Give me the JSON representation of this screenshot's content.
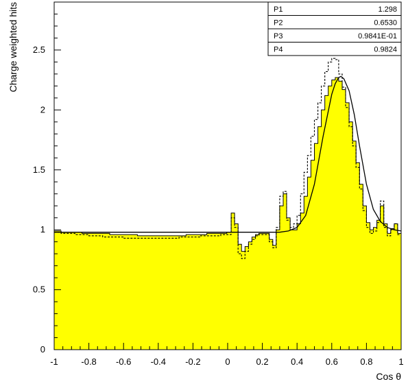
{
  "chart_data": {
    "type": "line",
    "title": "",
    "xlabel": "Cos θ",
    "ylabel": "Charge weighted hits",
    "xlim": [
      -1,
      1
    ],
    "ylim": [
      0,
      2.9
    ],
    "xticks": [
      "-1",
      "-0.8",
      "-0.6",
      "-0.4",
      "-0.2",
      "0",
      "0.2",
      "0.4",
      "0.6",
      "0.8",
      "1"
    ],
    "yticks": [
      "0",
      "0.5",
      "1",
      "1.5",
      "2",
      "2.5"
    ],
    "series": [
      {
        "kind": "histogram_filled",
        "color": "#ffff00",
        "x": [
          -0.98,
          -0.94,
          -0.9,
          -0.86,
          -0.82,
          -0.78,
          -0.74,
          -0.7,
          -0.66,
          -0.62,
          -0.58,
          -0.54,
          -0.5,
          -0.46,
          -0.42,
          -0.38,
          -0.34,
          -0.3,
          -0.26,
          -0.22,
          -0.18,
          -0.14,
          -0.1,
          -0.06,
          -0.02,
          0.01,
          0.03,
          0.05,
          0.07,
          0.09,
          0.11,
          0.13,
          0.15,
          0.17,
          0.19,
          0.21,
          0.23,
          0.25,
          0.27,
          0.29,
          0.31,
          0.33,
          0.35,
          0.37,
          0.39,
          0.41,
          0.43,
          0.45,
          0.47,
          0.49,
          0.51,
          0.53,
          0.55,
          0.57,
          0.59,
          0.61,
          0.63,
          0.65,
          0.67,
          0.69,
          0.71,
          0.73,
          0.75,
          0.77,
          0.79,
          0.81,
          0.83,
          0.85,
          0.87,
          0.89,
          0.91,
          0.93,
          0.95,
          0.97,
          0.99
        ],
        "y": [
          0.99,
          0.98,
          0.98,
          0.98,
          0.97,
          0.97,
          0.97,
          0.97,
          0.96,
          0.96,
          0.96,
          0.96,
          0.95,
          0.95,
          0.95,
          0.95,
          0.95,
          0.95,
          0.95,
          0.96,
          0.96,
          0.96,
          0.97,
          0.97,
          0.97,
          0.98,
          1.14,
          1.05,
          0.88,
          0.82,
          0.86,
          0.9,
          0.94,
          0.96,
          0.97,
          0.97,
          0.97,
          0.92,
          0.87,
          1.0,
          1.2,
          1.3,
          1.1,
          1.0,
          1.0,
          1.05,
          1.14,
          1.28,
          1.44,
          1.58,
          1.72,
          1.86,
          2.0,
          2.12,
          2.2,
          2.25,
          2.27,
          2.24,
          2.17,
          2.06,
          1.9,
          1.74,
          1.56,
          1.38,
          1.2,
          1.06,
          1.0,
          1.02,
          1.08,
          1.2,
          1.05,
          0.97,
          1.01,
          1.05,
          0.97
        ]
      },
      {
        "kind": "histogram_dashed",
        "x": [
          -0.98,
          -0.94,
          -0.9,
          -0.86,
          -0.82,
          -0.78,
          -0.74,
          -0.7,
          -0.66,
          -0.62,
          -0.58,
          -0.54,
          -0.5,
          -0.46,
          -0.42,
          -0.38,
          -0.34,
          -0.3,
          -0.26,
          -0.22,
          -0.18,
          -0.14,
          -0.1,
          -0.06,
          -0.02,
          0.01,
          0.03,
          0.05,
          0.07,
          0.09,
          0.11,
          0.13,
          0.15,
          0.17,
          0.19,
          0.21,
          0.23,
          0.25,
          0.27,
          0.29,
          0.31,
          0.33,
          0.35,
          0.37,
          0.39,
          0.41,
          0.43,
          0.45,
          0.47,
          0.49,
          0.51,
          0.53,
          0.55,
          0.57,
          0.59,
          0.61,
          0.63,
          0.65,
          0.67,
          0.69,
          0.71,
          0.73,
          0.75,
          0.77,
          0.79,
          0.81,
          0.83,
          0.85,
          0.87,
          0.89,
          0.91,
          0.93,
          0.95,
          0.97,
          0.99
        ],
        "y": [
          0.98,
          0.97,
          0.97,
          0.96,
          0.96,
          0.95,
          0.95,
          0.94,
          0.94,
          0.94,
          0.93,
          0.93,
          0.93,
          0.93,
          0.93,
          0.93,
          0.93,
          0.93,
          0.94,
          0.94,
          0.94,
          0.95,
          0.95,
          0.95,
          0.96,
          0.96,
          1.1,
          1.02,
          0.8,
          0.76,
          0.82,
          0.88,
          0.92,
          0.95,
          0.96,
          0.96,
          0.96,
          0.9,
          0.85,
          1.02,
          1.28,
          1.32,
          1.08,
          1.02,
          1.05,
          1.12,
          1.3,
          1.48,
          1.62,
          1.78,
          1.92,
          2.06,
          2.2,
          2.32,
          2.4,
          2.43,
          2.42,
          2.3,
          2.19,
          2.02,
          1.86,
          1.7,
          1.52,
          1.34,
          1.16,
          1.02,
          0.97,
          0.99,
          1.06,
          1.24,
          1.02,
          0.95,
          1.0,
          1.05,
          0.96
        ]
      },
      {
        "kind": "fit_curve",
        "x": [
          -1,
          -0.5,
          0,
          0.2,
          0.3,
          0.35,
          0.4,
          0.45,
          0.5,
          0.55,
          0.6,
          0.62,
          0.64,
          0.653,
          0.67,
          0.7,
          0.73,
          0.76,
          0.8,
          0.84,
          0.88,
          0.92,
          0.96,
          1.0
        ],
        "y": [
          0.98,
          0.98,
          0.98,
          0.98,
          0.98,
          0.99,
          1.02,
          1.12,
          1.38,
          1.78,
          2.13,
          2.22,
          2.27,
          2.28,
          2.26,
          2.16,
          1.96,
          1.7,
          1.38,
          1.17,
          1.07,
          1.02,
          1.0,
          0.99
        ]
      }
    ],
    "stats_box": [
      {
        "label": "P1",
        "value": "1.298"
      },
      {
        "label": "P2",
        "value": "0.6530"
      },
      {
        "label": "P3",
        "value": "0.9841E-01"
      },
      {
        "label": "P4",
        "value": "0.9824"
      }
    ]
  }
}
